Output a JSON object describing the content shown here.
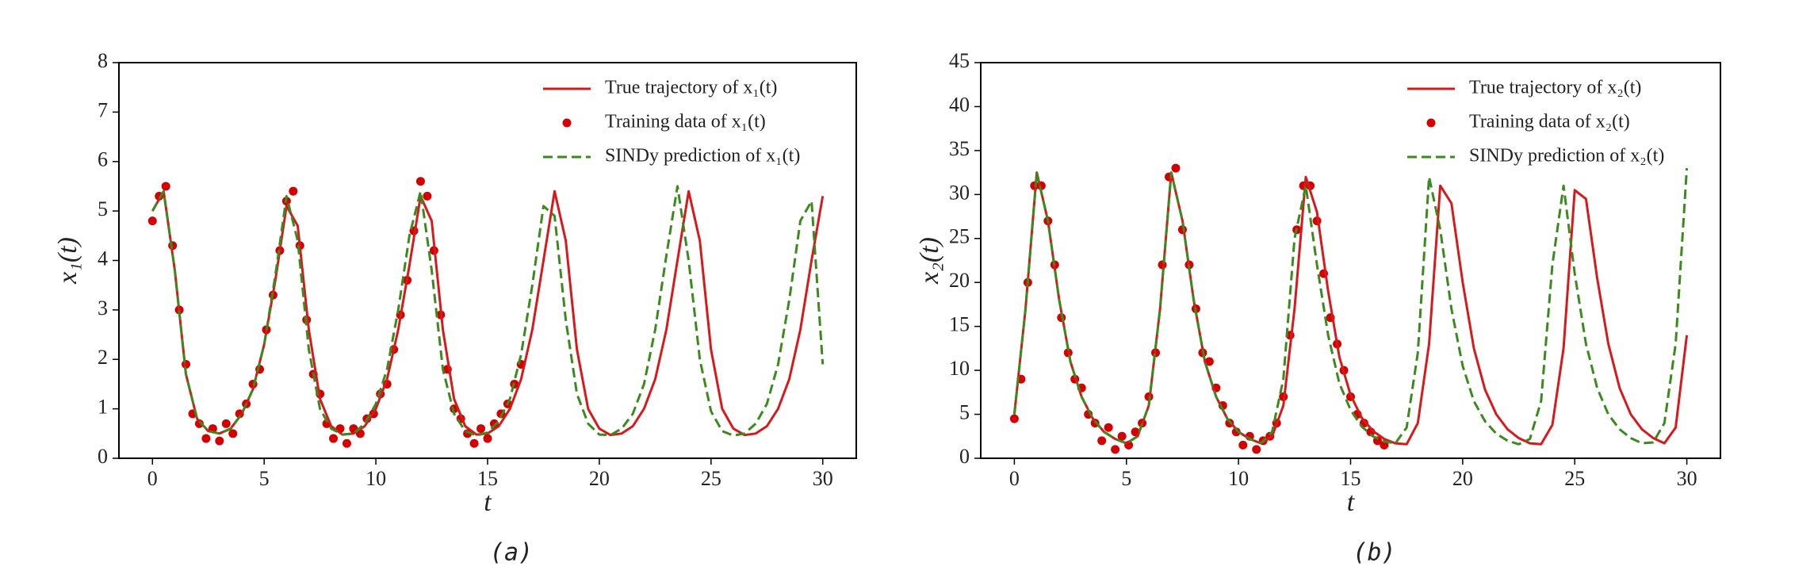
{
  "chart_data": [
    {
      "type": "line",
      "caption": "(a)",
      "xlabel": "t",
      "ylabel": "x₁(t)",
      "xlim": [
        -1.5,
        31.5
      ],
      "ylim": [
        0,
        8
      ],
      "xticks": [
        0,
        5,
        10,
        15,
        20,
        25,
        30
      ],
      "yticks": [
        0,
        1,
        2,
        3,
        4,
        5,
        6,
        7,
        8
      ],
      "legend": "upper right",
      "x": [
        0,
        0.5,
        1,
        1.5,
        2,
        2.5,
        3,
        3.5,
        4,
        4.5,
        5,
        5.5,
        6,
        6.5,
        7,
        7.5,
        8,
        8.5,
        9,
        9.5,
        10,
        10.5,
        11,
        11.5,
        12,
        12.5,
        13,
        13.5,
        14,
        14.5,
        15,
        15.5,
        16,
        16.5,
        17,
        17.5,
        18,
        18.5,
        19,
        19.5,
        20,
        20.5,
        21,
        21.5,
        22,
        22.5,
        23,
        23.5,
        24,
        24.5,
        25,
        25.5,
        26,
        26.5,
        27,
        27.5,
        28,
        28.5,
        29,
        29.5,
        30
      ],
      "series": [
        {
          "name": "True trajectory of x₁(t)",
          "color": "#d7191c",
          "style": "solid",
          "values": [
            5.0,
            5.4,
            3.8,
            1.7,
            0.8,
            0.55,
            0.5,
            0.6,
            0.9,
            1.4,
            2.3,
            3.6,
            5.1,
            4.7,
            2.6,
            1.2,
            0.65,
            0.48,
            0.5,
            0.65,
            1.0,
            1.6,
            2.6,
            3.9,
            5.3,
            4.8,
            2.6,
            1.2,
            0.65,
            0.48,
            0.5,
            0.65,
            1.0,
            1.6,
            2.6,
            4.0,
            5.4,
            4.4,
            2.2,
            1.0,
            0.6,
            0.47,
            0.5,
            0.65,
            1.0,
            1.6,
            2.6,
            4.0,
            5.4,
            4.4,
            2.2,
            1.0,
            0.6,
            0.47,
            0.5,
            0.65,
            1.0,
            1.6,
            2.6,
            4.0,
            5.3
          ]
        },
        {
          "name": "Training data of x₁(t)",
          "color": "#d40000",
          "style": "markers",
          "x": [
            0,
            0.3,
            0.6,
            0.9,
            1.2,
            1.5,
            1.8,
            2.1,
            2.4,
            2.7,
            3.0,
            3.3,
            3.6,
            3.9,
            4.2,
            4.5,
            4.8,
            5.1,
            5.4,
            5.7,
            6.0,
            6.3,
            6.6,
            6.9,
            7.2,
            7.5,
            7.8,
            8.1,
            8.4,
            8.7,
            9.0,
            9.3,
            9.6,
            9.9,
            10.2,
            10.5,
            10.8,
            11.1,
            11.4,
            11.7,
            12.0,
            12.3,
            12.6,
            12.9,
            13.2,
            13.5,
            13.8,
            14.1,
            14.4,
            14.7,
            15.0,
            15.3,
            15.6,
            15.9,
            16.2,
            16.5
          ],
          "values": [
            4.8,
            5.3,
            5.5,
            4.3,
            3.0,
            1.9,
            0.9,
            0.7,
            0.4,
            0.6,
            0.35,
            0.7,
            0.5,
            0.9,
            1.1,
            1.5,
            1.8,
            2.6,
            3.3,
            4.2,
            5.2,
            5.4,
            4.3,
            2.8,
            1.7,
            1.3,
            0.7,
            0.4,
            0.6,
            0.3,
            0.6,
            0.5,
            0.8,
            0.9,
            1.3,
            1.5,
            2.2,
            2.9,
            3.6,
            4.6,
            5.6,
            5.3,
            4.2,
            2.9,
            1.8,
            1.0,
            0.8,
            0.5,
            0.3,
            0.6,
            0.4,
            0.7,
            0.9,
            1.1,
            1.5,
            1.9
          ]
        },
        {
          "name": "SINDy prediction of x₁(t)",
          "color": "#3a8a1e",
          "style": "dashed",
          "values": [
            5.0,
            5.4,
            3.8,
            1.7,
            0.8,
            0.55,
            0.5,
            0.6,
            0.9,
            1.4,
            2.3,
            3.7,
            5.3,
            4.4,
            2.2,
            1.0,
            0.6,
            0.48,
            0.5,
            0.7,
            1.1,
            1.8,
            3.0,
            4.5,
            5.4,
            3.8,
            1.8,
            0.9,
            0.55,
            0.46,
            0.52,
            0.75,
            1.2,
            2.1,
            3.5,
            5.1,
            4.9,
            2.8,
            1.3,
            0.7,
            0.48,
            0.47,
            0.6,
            0.9,
            1.5,
            2.6,
            4.1,
            5.5,
            4.0,
            2.0,
            0.95,
            0.55,
            0.46,
            0.5,
            0.7,
            1.1,
            1.9,
            3.2,
            4.8,
            5.2,
            1.9
          ]
        }
      ]
    },
    {
      "type": "line",
      "caption": "(b)",
      "xlabel": "t",
      "ylabel": "x₂(t)",
      "xlim": [
        -1.5,
        31.5
      ],
      "ylim": [
        0,
        45
      ],
      "xticks": [
        0,
        5,
        10,
        15,
        20,
        25,
        30
      ],
      "yticks": [
        0,
        5,
        10,
        15,
        20,
        25,
        30,
        35,
        40,
        45
      ],
      "legend": "upper right",
      "x": [
        0,
        0.5,
        1,
        1.5,
        2,
        2.5,
        3,
        3.5,
        4,
        4.5,
        5,
        5.5,
        6,
        6.5,
        7,
        7.5,
        8,
        8.5,
        9,
        9.5,
        10,
        10.5,
        11,
        11.5,
        12,
        12.5,
        13,
        13.5,
        14,
        14.5,
        15,
        15.5,
        16,
        16.5,
        17,
        17.5,
        18,
        18.5,
        19,
        19.5,
        20,
        20.5,
        21,
        21.5,
        22,
        22.5,
        23,
        23.5,
        24,
        24.5,
        25,
        25.5,
        26,
        26.5,
        27,
        27.5,
        28,
        28.5,
        29,
        29.5,
        30
      ],
      "series": [
        {
          "name": "True trajectory of x₂(t)",
          "color": "#d7191c",
          "style": "solid",
          "values": [
            5,
            17,
            32.5,
            27,
            18,
            11,
            7,
            4.5,
            3,
            2.2,
            1.7,
            2.5,
            6,
            17,
            32.5,
            27,
            18,
            11,
            7,
            4.5,
            3,
            2.2,
            1.7,
            2.5,
            6,
            17,
            32,
            28,
            19,
            11.5,
            7.2,
            4.6,
            3.1,
            2.2,
            1.7,
            1.6,
            4,
            13,
            31,
            29,
            20,
            12.5,
            7.8,
            5,
            3.3,
            2.3,
            1.7,
            1.6,
            3.8,
            12.5,
            30.5,
            29.5,
            20.5,
            13,
            8,
            5,
            3.3,
            2.3,
            1.7,
            3.5,
            14
          ]
        },
        {
          "name": "Training data of x₂(t)",
          "color": "#d40000",
          "style": "markers",
          "x": [
            0,
            0.3,
            0.6,
            0.9,
            1.2,
            1.5,
            1.8,
            2.1,
            2.4,
            2.7,
            3.0,
            3.3,
            3.6,
            3.9,
            4.2,
            4.5,
            4.8,
            5.1,
            5.4,
            5.7,
            6.0,
            6.3,
            6.6,
            6.9,
            7.2,
            7.5,
            7.8,
            8.1,
            8.4,
            8.7,
            9.0,
            9.3,
            9.6,
            9.9,
            10.2,
            10.5,
            10.8,
            11.1,
            11.4,
            11.7,
            12.0,
            12.3,
            12.6,
            12.9,
            13.2,
            13.5,
            13.8,
            14.1,
            14.4,
            14.7,
            15.0,
            15.3,
            15.6,
            15.9,
            16.2,
            16.5
          ],
          "values": [
            4.5,
            9,
            20,
            31,
            31,
            27,
            22,
            16,
            12,
            9,
            8,
            5,
            4,
            2,
            3.5,
            1,
            2.5,
            1.5,
            3,
            4,
            7,
            12,
            22,
            32,
            33,
            26,
            22,
            17,
            12,
            11,
            8,
            6,
            4,
            3,
            1.5,
            2.5,
            1,
            2,
            2.5,
            4,
            7,
            14,
            26,
            31,
            31,
            27,
            21,
            16,
            13,
            10,
            7,
            5,
            4,
            3,
            2,
            1.5
          ]
        },
        {
          "name": "SINDy prediction of x₂(t)",
          "color": "#3a8a1e",
          "style": "dashed",
          "values": [
            5,
            17,
            32.5,
            27,
            18,
            11,
            7,
            4.5,
            3,
            2.2,
            1.7,
            2.5,
            6,
            17,
            32.5,
            27,
            18,
            11,
            7,
            4.5,
            3,
            2.2,
            1.7,
            3,
            9,
            25,
            31,
            22,
            14,
            8.5,
            5.5,
            3.6,
            2.5,
            1.9,
            1.7,
            3.5,
            12,
            32,
            26,
            17,
            10.5,
            6.5,
            4.2,
            2.8,
            2.0,
            1.6,
            2.2,
            6.5,
            22,
            31,
            21,
            13,
            8,
            5,
            3.3,
            2.3,
            1.7,
            1.8,
            4,
            13,
            33
          ]
        }
      ]
    }
  ]
}
